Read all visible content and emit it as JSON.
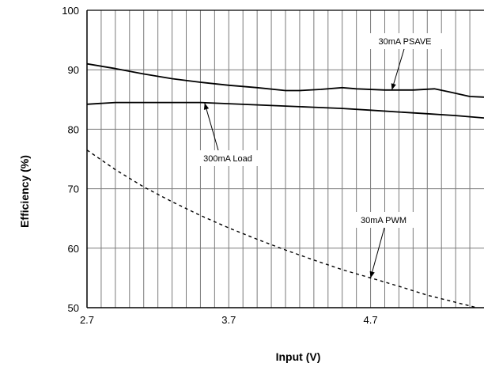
{
  "chart_data": {
    "type": "line",
    "title": "",
    "xlabel": "Input (V)",
    "ylabel": "Efficiency (%)",
    "xlim": [
      2.7,
      5.5
    ],
    "ylim": [
      50,
      100
    ],
    "x_ticks": [
      2.7,
      3.7,
      4.7
    ],
    "x_tick_labels": [
      "2.7",
      "3.7",
      "4.7"
    ],
    "y_ticks": [
      50,
      60,
      70,
      80,
      90,
      100
    ],
    "y_tick_labels": [
      "50",
      "60",
      "70",
      "80",
      "90",
      "100"
    ],
    "grid": true,
    "series": [
      {
        "name": "30mA PSAVE",
        "style": "solid",
        "x": [
          2.7,
          2.9,
          3.1,
          3.3,
          3.5,
          3.7,
          3.9,
          4.1,
          4.2,
          4.35,
          4.5,
          4.6,
          4.8,
          5.0,
          5.15,
          5.25,
          5.4,
          5.5
        ],
        "y": [
          91.0,
          90.2,
          89.3,
          88.5,
          87.9,
          87.4,
          87.0,
          86.5,
          86.5,
          86.7,
          87.0,
          86.8,
          86.6,
          86.6,
          86.8,
          86.3,
          85.5,
          85.4
        ]
      },
      {
        "name": "300mA Load",
        "style": "solid",
        "x": [
          2.7,
          2.9,
          3.1,
          3.3,
          3.5,
          3.7,
          3.9,
          4.1,
          4.3,
          4.5,
          4.7,
          4.9,
          5.1,
          5.3,
          5.5
        ],
        "y": [
          84.2,
          84.5,
          84.5,
          84.5,
          84.5,
          84.3,
          84.1,
          83.9,
          83.7,
          83.5,
          83.2,
          82.9,
          82.6,
          82.3,
          81.9
        ]
      },
      {
        "name": "30mA PWM",
        "style": "dashed",
        "x": [
          2.7,
          2.9,
          3.1,
          3.3,
          3.5,
          3.7,
          3.9,
          4.1,
          4.3,
          4.5,
          4.7,
          4.9,
          5.1,
          5.3,
          5.45
        ],
        "y": [
          76.5,
          73.2,
          70.3,
          67.8,
          65.5,
          63.4,
          61.5,
          59.7,
          58.0,
          56.4,
          55.0,
          53.6,
          52.1,
          50.9,
          50.0
        ]
      }
    ],
    "annotations": [
      {
        "text": "30mA PSAVE",
        "target_series": "30mA PSAVE",
        "at_x": 4.85,
        "at_y": 86.6
      },
      {
        "text": "300mA Load",
        "target_series": "300mA Load",
        "at_x": 3.53,
        "at_y": 84.4
      },
      {
        "text": "30mA PWM",
        "target_series": "30mA PWM",
        "at_x": 4.7,
        "at_y": 55.0
      }
    ]
  }
}
